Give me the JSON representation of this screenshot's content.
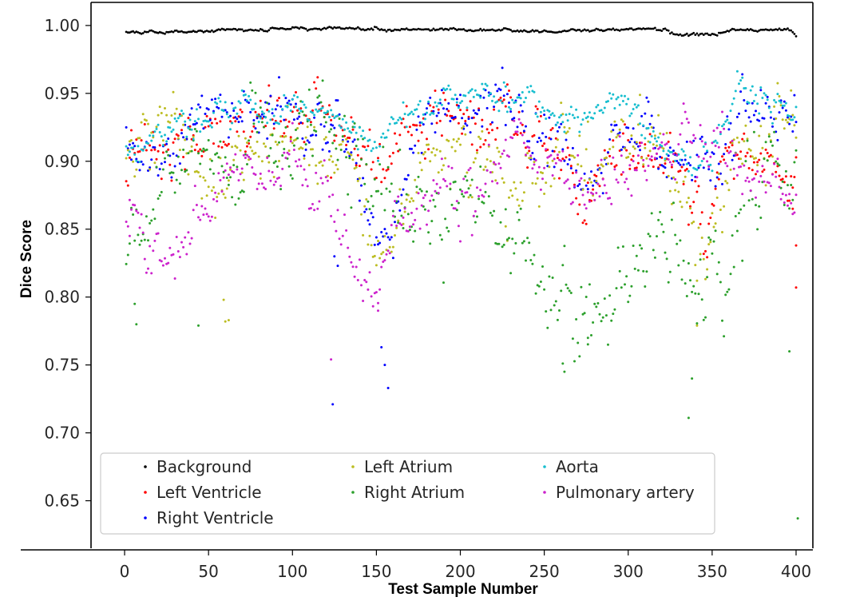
{
  "chart_data": {
    "type": "scatter",
    "title": "",
    "xlabel": "Test Sample Number",
    "ylabel": "Dice Score",
    "xlim": [
      -20,
      410
    ],
    "ylim": [
      0.615,
      1.017
    ],
    "x_ticks": [
      0,
      50,
      100,
      150,
      200,
      250,
      300,
      350,
      400
    ],
    "y_ticks": [
      0.65,
      0.7,
      0.75,
      0.8,
      0.85,
      0.9,
      0.95,
      1.0
    ],
    "x_tick_labels": [
      "0",
      "50",
      "100",
      "150",
      "200",
      "250",
      "300",
      "350",
      "400"
    ],
    "y_tick_labels": [
      "0.65",
      "0.70",
      "0.75",
      "0.80",
      "0.85",
      "0.90",
      "0.95",
      "1.00"
    ],
    "grid": false,
    "legend_position": "lower-left",
    "legend_columns": 3,
    "n_samples": 400,
    "series": [
      {
        "name": "Background",
        "color": "#000000",
        "knots": [
          [
            0,
            0.995
          ],
          [
            50,
            0.996
          ],
          [
            100,
            0.998
          ],
          [
            150,
            0.997
          ],
          [
            200,
            0.997
          ],
          [
            250,
            0.996
          ],
          [
            300,
            0.997
          ],
          [
            322,
            0.997
          ],
          [
            325,
            0.994
          ],
          [
            340,
            0.993
          ],
          [
            355,
            0.994
          ],
          [
            362,
            0.997
          ],
          [
            395,
            0.997
          ],
          [
            400,
            0.992
          ]
        ],
        "spread": 0.0008
      },
      {
        "name": "Left Ventricle",
        "color": "#ff0000",
        "knots": [
          [
            0,
            0.9
          ],
          [
            30,
            0.91
          ],
          [
            60,
            0.925
          ],
          [
            100,
            0.94
          ],
          [
            125,
            0.925
          ],
          [
            150,
            0.885
          ],
          [
            160,
            0.91
          ],
          [
            200,
            0.935
          ],
          [
            230,
            0.935
          ],
          [
            260,
            0.905
          ],
          [
            275,
            0.86
          ],
          [
            300,
            0.91
          ],
          [
            330,
            0.9
          ],
          [
            345,
            0.85
          ],
          [
            360,
            0.9
          ],
          [
            400,
            0.89
          ]
        ],
        "spread": 0.015,
        "extras": [
          [
            400,
            0.807
          ],
          [
            400,
            0.838
          ],
          [
            123,
            0.888
          ],
          [
            398,
            0.865
          ]
        ]
      },
      {
        "name": "Right Ventricle",
        "color": "#0000ff",
        "knots": [
          [
            0,
            0.91
          ],
          [
            20,
            0.89
          ],
          [
            50,
            0.935
          ],
          [
            100,
            0.94
          ],
          [
            125,
            0.925
          ],
          [
            145,
            0.87
          ],
          [
            160,
            0.84
          ],
          [
            175,
            0.925
          ],
          [
            200,
            0.935
          ],
          [
            225,
            0.945
          ],
          [
            250,
            0.92
          ],
          [
            280,
            0.89
          ],
          [
            300,
            0.93
          ],
          [
            330,
            0.91
          ],
          [
            350,
            0.9
          ],
          [
            370,
            0.935
          ],
          [
            400,
            0.93
          ]
        ],
        "spread": 0.015,
        "extras": [
          [
            124,
            0.721
          ],
          [
            157,
            0.733
          ],
          [
            155,
            0.75
          ],
          [
            153,
            0.763
          ],
          [
            127,
            0.823
          ],
          [
            125,
            0.83
          ]
        ]
      },
      {
        "name": "Left Atrium",
        "color": "#bcbd22",
        "knots": [
          [
            0,
            0.92
          ],
          [
            30,
            0.93
          ],
          [
            50,
            0.88
          ],
          [
            80,
            0.92
          ],
          [
            100,
            0.9
          ],
          [
            130,
            0.91
          ],
          [
            150,
            0.83
          ],
          [
            180,
            0.895
          ],
          [
            210,
            0.92
          ],
          [
            230,
            0.87
          ],
          [
            260,
            0.92
          ],
          [
            280,
            0.89
          ],
          [
            320,
            0.91
          ],
          [
            345,
            0.82
          ],
          [
            360,
            0.895
          ],
          [
            400,
            0.925
          ]
        ],
        "spread": 0.018,
        "extras": [
          [
            59,
            0.798
          ],
          [
            341,
            0.779
          ],
          [
            60,
            0.782
          ],
          [
            62,
            0.783
          ]
        ]
      },
      {
        "name": "Right Atrium",
        "color": "#2ca02c",
        "knots": [
          [
            0,
            0.82
          ],
          [
            20,
            0.89
          ],
          [
            50,
            0.9
          ],
          [
            100,
            0.915
          ],
          [
            130,
            0.91
          ],
          [
            150,
            0.88
          ],
          [
            170,
            0.89
          ],
          [
            200,
            0.875
          ],
          [
            230,
            0.855
          ],
          [
            260,
            0.8
          ],
          [
            290,
            0.81
          ],
          [
            320,
            0.83
          ],
          [
            340,
            0.82
          ],
          [
            355,
            0.81
          ],
          [
            380,
            0.895
          ],
          [
            400,
            0.89
          ]
        ],
        "spread": 0.025,
        "extras": [
          [
            7,
            0.78
          ],
          [
            6,
            0.795
          ],
          [
            44,
            0.779
          ],
          [
            336,
            0.711
          ],
          [
            338,
            0.74
          ],
          [
            396,
            0.76
          ],
          [
            401,
            0.637
          ],
          [
            261,
            0.751
          ],
          [
            262,
            0.745
          ],
          [
            276,
            0.77
          ]
        ]
      },
      {
        "name": "Aorta",
        "color": "#17becf",
        "knots": [
          [
            0,
            0.91
          ],
          [
            20,
            0.92
          ],
          [
            40,
            0.93
          ],
          [
            100,
            0.94
          ],
          [
            130,
            0.93
          ],
          [
            140,
            0.92
          ],
          [
            150,
            0.905
          ],
          [
            170,
            0.935
          ],
          [
            200,
            0.945
          ],
          [
            250,
            0.94
          ],
          [
            270,
            0.93
          ],
          [
            300,
            0.94
          ],
          [
            330,
            0.9
          ],
          [
            350,
            0.905
          ],
          [
            365,
            0.95
          ],
          [
            400,
            0.94
          ]
        ],
        "spread": 0.008
      },
      {
        "name": "Pulmonary artery",
        "color": "#cc22cc",
        "knots": [
          [
            0,
            0.86
          ],
          [
            30,
            0.83
          ],
          [
            60,
            0.9
          ],
          [
            100,
            0.9
          ],
          [
            120,
            0.87
          ],
          [
            140,
            0.82
          ],
          [
            150,
            0.78
          ],
          [
            160,
            0.86
          ],
          [
            200,
            0.87
          ],
          [
            230,
            0.91
          ],
          [
            260,
            0.9
          ],
          [
            280,
            0.87
          ],
          [
            300,
            0.88
          ],
          [
            330,
            0.92
          ],
          [
            350,
            0.9
          ],
          [
            380,
            0.89
          ],
          [
            400,
            0.87
          ]
        ],
        "spread": 0.015,
        "extras": [
          [
            123,
            0.754
          ],
          [
            3,
            0.845
          ],
          [
            151,
            0.79
          ]
        ]
      }
    ]
  }
}
